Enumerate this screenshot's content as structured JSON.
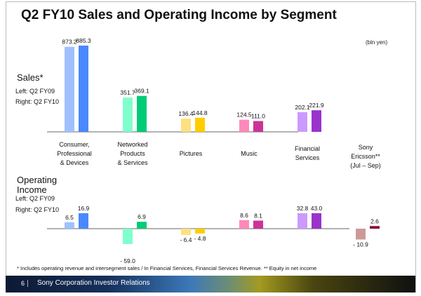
{
  "header": {
    "title": "Q2 FY10 Sales and Operating Income by Segment",
    "unit": "(bln yen)"
  },
  "legend": {
    "left": "Left:   Q2 FY09",
    "right": "Right: Q2 FY10"
  },
  "footer": {
    "note": "* Includes operating revenue and intersegment sales / In Financial Services, Financial Services Revenue.  ** Equity in net income",
    "page": "6",
    "company": "Sony Corporation Investor Relations"
  },
  "chart_data": [
    {
      "type": "bar",
      "title": "Sales*",
      "categories": [
        "Consumer, Professional & Devices",
        "Networked Products & Services",
        "Pictures",
        "Music",
        "Financial Services"
      ],
      "series": [
        {
          "name": "Q2 FY09",
          "values": [
            873.2,
            351.7,
            136.4,
            124.5,
            202.1
          ],
          "labels": [
            "873.2",
            "351.7",
            "136.4",
            "124.5",
            "202.1"
          ]
        },
        {
          "name": "Q2 FY10",
          "values": [
            885.3,
            369.1,
            144.8,
            111.0,
            221.9
          ],
          "labels": [
            "885.3",
            "369.1",
            "144.8",
            "111.0",
            "221.9"
          ]
        }
      ]
    },
    {
      "type": "bar",
      "title": "Operating Income",
      "categories": [
        "Consumer, Professional & Devices",
        "Networked Products & Services",
        "Pictures",
        "Music",
        "Financial Services",
        "Sony Ericsson** (Jul – Sep)"
      ],
      "series": [
        {
          "name": "Q2 FY09",
          "values": [
            6.5,
            -59.0,
            -6.4,
            8.6,
            32.8,
            -10.9
          ],
          "labels": [
            "6.5",
            "- 59.0",
            "- 6.4",
            "8.6",
            "32.8",
            "- 10.9"
          ]
        },
        {
          "name": "Q2 FY10",
          "values": [
            16.9,
            6.9,
            -4.8,
            8.1,
            43.0,
            2.6
          ],
          "labels": [
            "16.9",
            "6.9",
            "- 4.8",
            "8.1",
            "43.0",
            "2.6"
          ]
        }
      ]
    }
  ],
  "categories": [
    [
      "Consumer,",
      "Professional",
      "& Devices"
    ],
    [
      "Networked",
      "Products",
      "& Services"
    ],
    [
      "Pictures"
    ],
    [
      "Music"
    ],
    [
      "Financial",
      "Services"
    ],
    [
      "Sony",
      "Ericsson**",
      "(Jul – Sep)"
    ]
  ],
  "colors": {
    "fy09": [
      "#a0c0ff",
      "#80ffcc",
      "#ffe080",
      "#ff88bb",
      "#cc99ff",
      "#cc9999"
    ],
    "fy10": [
      "#4a88ff",
      "#00cc77",
      "#ffcc00",
      "#cc3399",
      "#9933cc",
      "#880033"
    ]
  }
}
